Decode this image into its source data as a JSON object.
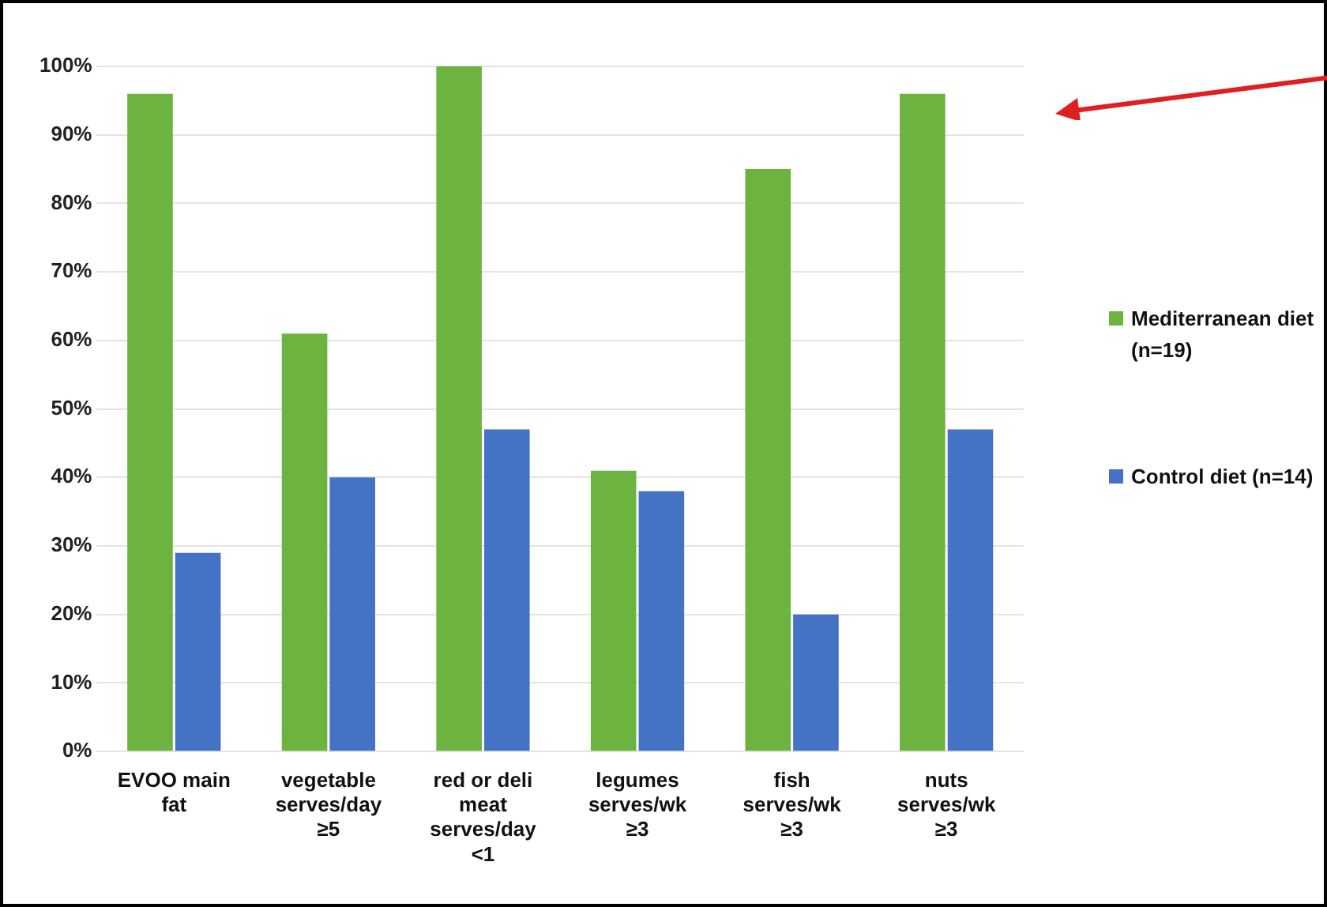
{
  "chart_data": {
    "type": "bar",
    "categories": [
      "EVOO main fat",
      "vegetable serves/day ≥5",
      "red or deli meat serves/day <1",
      "legumes serves/wk ≥3",
      "fish serves/wk ≥3",
      "nuts serves/wk ≥3"
    ],
    "series": [
      {
        "name": "Mediterranean diet (n=19)",
        "color": "#6db33f",
        "values": [
          96,
          61,
          100,
          41,
          85,
          96
        ]
      },
      {
        "name": "Control diet (n=14)",
        "color": "#4472c4",
        "values": [
          29,
          40,
          47,
          38,
          20,
          47
        ]
      }
    ],
    "ylim": [
      0,
      100
    ],
    "yticks": [
      {
        "value": 0,
        "label": "0%"
      },
      {
        "value": 10,
        "label": "10%"
      },
      {
        "value": 20,
        "label": "20%"
      },
      {
        "value": 30,
        "label": "30%"
      },
      {
        "value": 40,
        "label": "40%"
      },
      {
        "value": 50,
        "label": "50%"
      },
      {
        "value": 60,
        "label": "60%"
      },
      {
        "value": 70,
        "label": "70%"
      },
      {
        "value": 80,
        "label": "80%"
      },
      {
        "value": 90,
        "label": "90%"
      },
      {
        "value": 100,
        "label": "100%"
      }
    ],
    "grid": "y",
    "legend": "right"
  }
}
